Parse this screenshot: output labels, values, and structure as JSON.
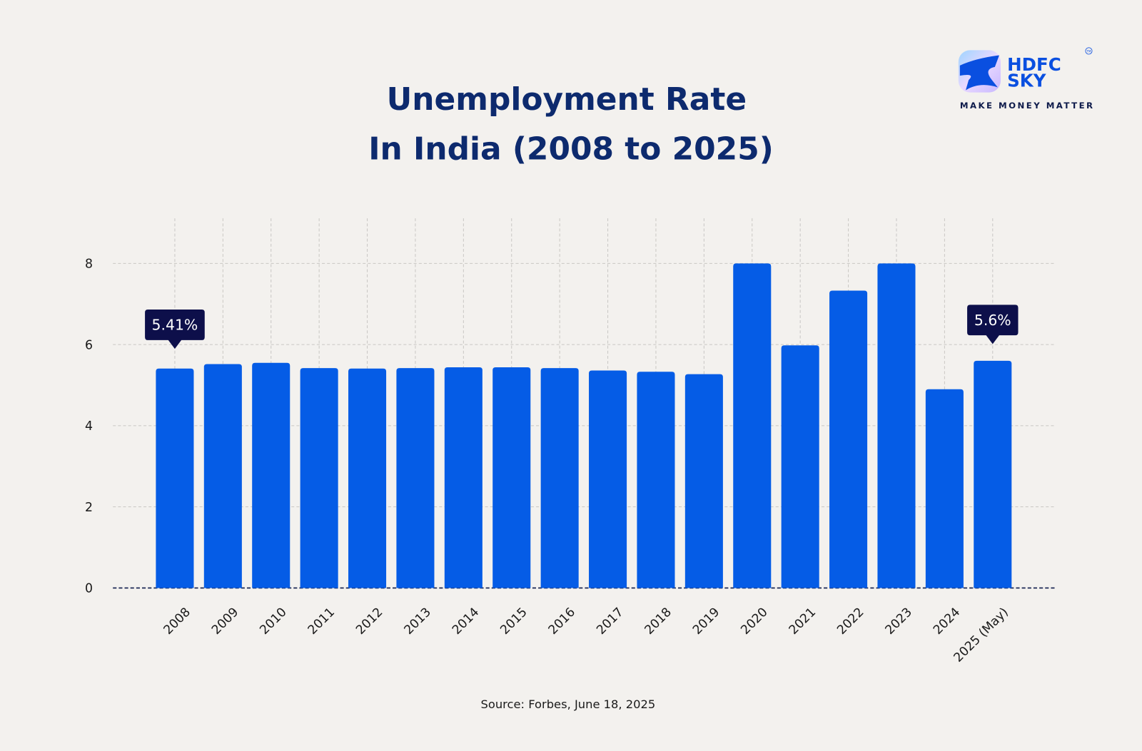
{
  "brand": {
    "name_line1": "HDFC",
    "name_line2": "SKY",
    "trademark": "TM",
    "tagline": "MAKE MONEY MATTER"
  },
  "chart_data": {
    "type": "bar",
    "title_line1": "Unemployment Rate",
    "title_line2": "In India (2008 to 2025)",
    "xlabel": "",
    "ylabel": "",
    "categories": [
      "2008",
      "2009",
      "2010",
      "2011",
      "2012",
      "2013",
      "2014",
      "2015",
      "2016",
      "2017",
      "2018",
      "2019",
      "2020",
      "2021",
      "2022",
      "2023",
      "2024",
      "2025 (May)"
    ],
    "values": [
      5.41,
      5.52,
      5.55,
      5.42,
      5.41,
      5.42,
      5.44,
      5.44,
      5.42,
      5.36,
      5.33,
      5.27,
      8.0,
      5.98,
      7.33,
      8.0,
      4.9,
      5.6
    ],
    "ylim": [
      0,
      8
    ],
    "yticks": [
      "0",
      "2",
      "4",
      "6",
      "8"
    ],
    "grid": true,
    "annotations": [
      {
        "category": "2008",
        "label": "5.41%"
      },
      {
        "category": "2025 (May)",
        "label": "5.6%"
      }
    ],
    "source": "Source: Forbes, June 18, 2025",
    "colors": {
      "bar": "#055ce6",
      "title": "#0d2a6e",
      "tooltip": "#0d0f4a",
      "baseline": "#0d1a4a",
      "grid": "#c9c7c4"
    }
  }
}
